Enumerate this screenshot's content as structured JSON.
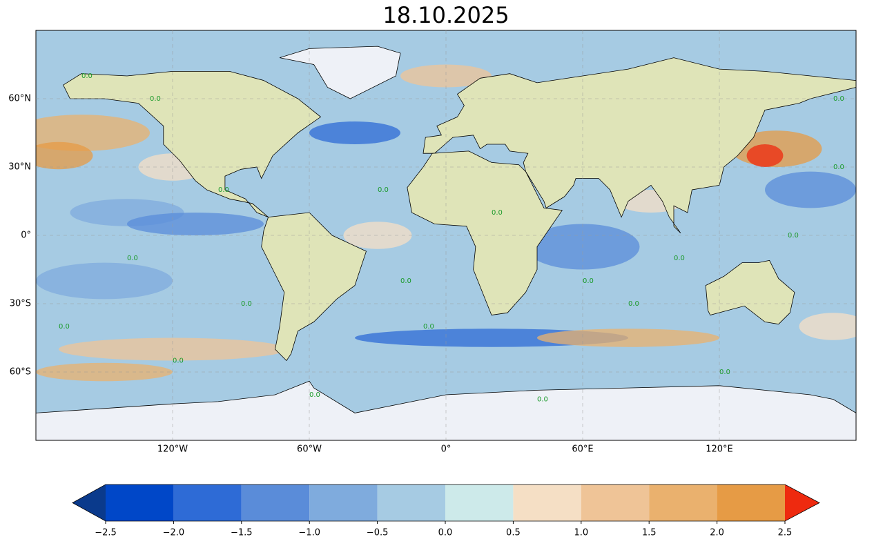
{
  "chart_data": {
    "type": "map",
    "title": "18.10.2025",
    "xlim": [
      -180,
      180
    ],
    "ylim": [
      -90,
      90
    ],
    "xticks": [
      {
        "value": -120,
        "label": "120°W"
      },
      {
        "value": -60,
        "label": "60°W"
      },
      {
        "value": 0,
        "label": "0°"
      },
      {
        "value": 60,
        "label": "60°E"
      },
      {
        "value": 120,
        "label": "120°E"
      }
    ],
    "yticks": [
      {
        "value": 60,
        "label": "60°N"
      },
      {
        "value": 30,
        "label": "30°N"
      },
      {
        "value": 0,
        "label": "0°"
      },
      {
        "value": -30,
        "label": "30°S"
      },
      {
        "value": -60,
        "label": "60°S"
      }
    ],
    "grid": true,
    "contour_label": "0.0",
    "colorbar": {
      "ticks": [
        {
          "value": -2.5,
          "label": "−2.5"
        },
        {
          "value": -2.0,
          "label": "−2.0"
        },
        {
          "value": -1.5,
          "label": "−1.5"
        },
        {
          "value": -1.0,
          "label": "−1.0"
        },
        {
          "value": -0.5,
          "label": "−0.5"
        },
        {
          "value": 0,
          "label": "0.0"
        },
        0.5,
        {
          "value": 1,
          "label": "1.0"
        },
        1.5,
        {
          "value": 2,
          "label": "2.0"
        },
        2.5
      ],
      "colors": [
        "#0047c8",
        "#2e6bd6",
        "#5a8cd9",
        "#7fabdd",
        "#a6cbe3",
        "#cdeaea",
        "#f5dfc5",
        "#efc497",
        "#eab16e",
        "#e69b45"
      ],
      "under": "#0a3a8c",
      "over": "#ee2a0f"
    }
  }
}
